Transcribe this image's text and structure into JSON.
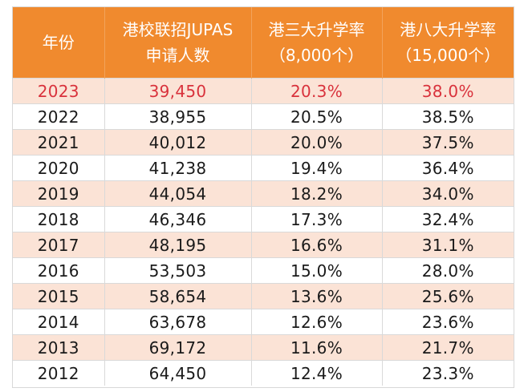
{
  "headers": [
    [
      "年份"
    ],
    [
      "港校联招JUPAS",
      "申请人数"
    ],
    [
      "港三大升学率",
      "（8,000个）"
    ],
    [
      "港八大升学率",
      "（15,000个）"
    ]
  ],
  "rows": [
    [
      "2023",
      "39,450",
      "20.3%",
      "38.0%"
    ],
    [
      "2022",
      "38,955",
      "20.5%",
      "38.5%"
    ],
    [
      "2021",
      "40,012",
      "20.0%",
      "37.5%"
    ],
    [
      "2020",
      "41,238",
      "19.4%",
      "36.4%"
    ],
    [
      "2019",
      "44,054",
      "18.2%",
      "34.0%"
    ],
    [
      "2018",
      "46,346",
      "17.3%",
      "32.4%"
    ],
    [
      "2017",
      "48,195",
      "16.6%",
      "31.1%"
    ],
    [
      "2016",
      "53,503",
      "15.0%",
      "28.0%"
    ],
    [
      "2015",
      "58,654",
      "13.6%",
      "25.6%"
    ],
    [
      "2014",
      "63,678",
      "12.6%",
      "23.6%"
    ],
    [
      "2013",
      "69,172",
      "11.6%",
      "21.7%"
    ],
    [
      "2012",
      "64,450",
      "12.4%",
      "23.3%"
    ]
  ],
  "colors": {
    "header_bg": "#f08a2e",
    "alt_row_bg": "#fbe3d6",
    "highlight_text": "#d9323c"
  }
}
